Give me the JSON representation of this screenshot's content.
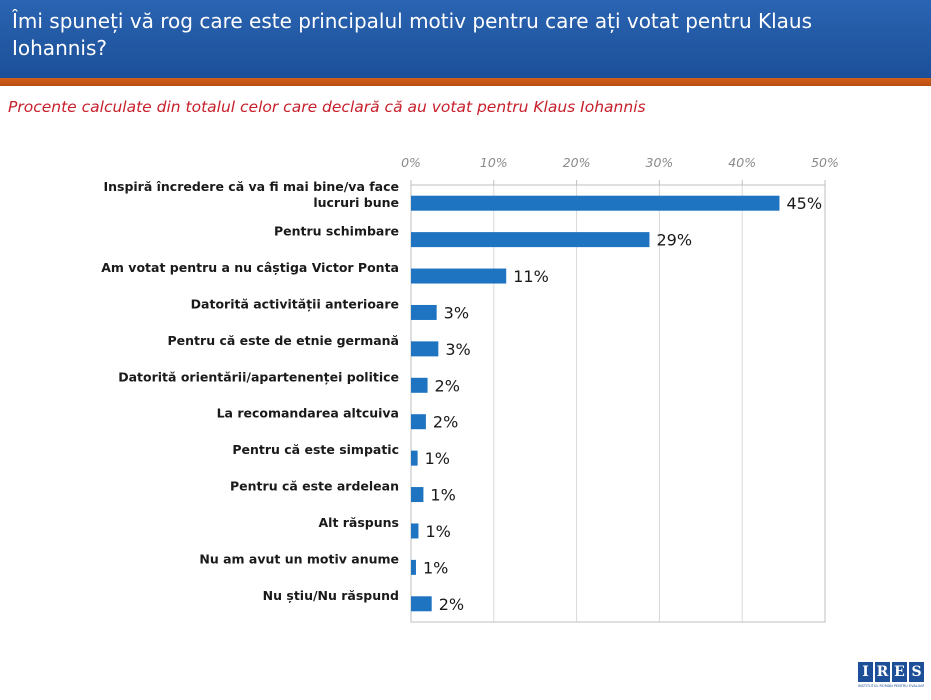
{
  "header": {
    "title": "Îmi spuneți vă rog care este principalul motiv pentru care ați votat pentru Klaus Iohannis?"
  },
  "subtitle": "Procente calculate din totalul celor care declară că au votat pentru Klaus Iohannis",
  "chart_data": {
    "type": "bar",
    "orientation": "horizontal",
    "categories": [
      [
        "Inspiră încredere că va fi mai bine/va face",
        "lucruri bune"
      ],
      [
        "Pentru schimbare"
      ],
      [
        "Am votat pentru a nu câștiga Victor Ponta"
      ],
      [
        "Datorită activității anterioare"
      ],
      [
        "Pentru că este de etnie germană"
      ],
      [
        "Datorită orientării/apartenenței politice"
      ],
      [
        "La recomandarea altcuiva"
      ],
      [
        "Pentru că este simpatic"
      ],
      [
        "Pentru că este ardelean"
      ],
      [
        "Alt răspuns"
      ],
      [
        "Nu am avut un motiv anume"
      ],
      [
        "Nu știu/Nu răspund"
      ]
    ],
    "values": [
      44.5,
      28.8,
      11.5,
      3.1,
      3.3,
      2.0,
      1.8,
      0.8,
      1.5,
      0.9,
      0.6,
      2.5
    ],
    "value_labels": [
      "45%",
      "29%",
      "11%",
      "3%",
      "3%",
      "2%",
      "2%",
      "1%",
      "1%",
      "1%",
      "1%",
      "2%"
    ],
    "xlim": [
      0,
      50
    ],
    "x_ticks": [
      0,
      10,
      20,
      30,
      40,
      50
    ],
    "x_tick_labels": [
      "0%",
      "10%",
      "20%",
      "30%",
      "40%",
      "50%"
    ],
    "axis_position": "top",
    "grid": true,
    "bar_color": "#1f74c1",
    "grid_color": "#d9d9d9",
    "legend": "none"
  },
  "logo": {
    "letters": [
      "I",
      "R",
      "E",
      "S"
    ],
    "tagline": "INSTITUTUL ROMÂN PENTRU EVALUARE ȘI STRATEGIE"
  }
}
